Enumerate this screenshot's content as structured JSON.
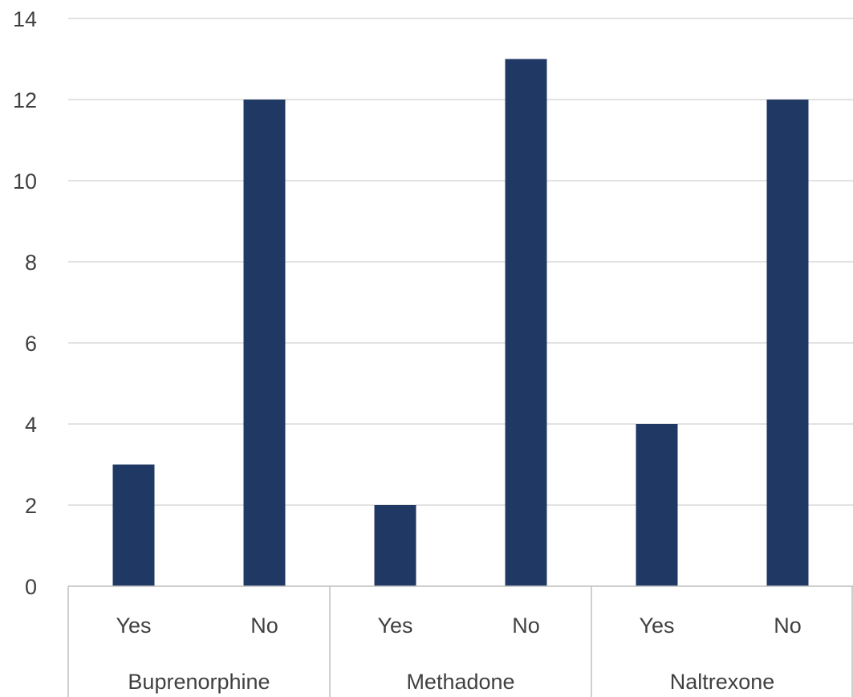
{
  "chart_data": {
    "type": "bar",
    "categories": [
      {
        "label": "Yes",
        "group": "Buprenorphine"
      },
      {
        "label": "No",
        "group": "Buprenorphine"
      },
      {
        "label": "Yes",
        "group": "Methadone"
      },
      {
        "label": "No",
        "group": "Methadone"
      },
      {
        "label": "Yes",
        "group": "Naltrexone"
      },
      {
        "label": "No",
        "group": "Naltrexone"
      }
    ],
    "groups": [
      "Buprenorphine",
      "Methadone",
      "Naltrexone"
    ],
    "values": [
      3,
      12,
      2,
      13,
      4,
      12
    ],
    "y_ticks": [
      "0",
      "2",
      "4",
      "6",
      "8",
      "10",
      "12",
      "14"
    ],
    "ylim": [
      0,
      14
    ],
    "grid": true,
    "legend": "none",
    "bar_color": "#203864",
    "title": "",
    "xlabel": "",
    "ylabel": ""
  }
}
